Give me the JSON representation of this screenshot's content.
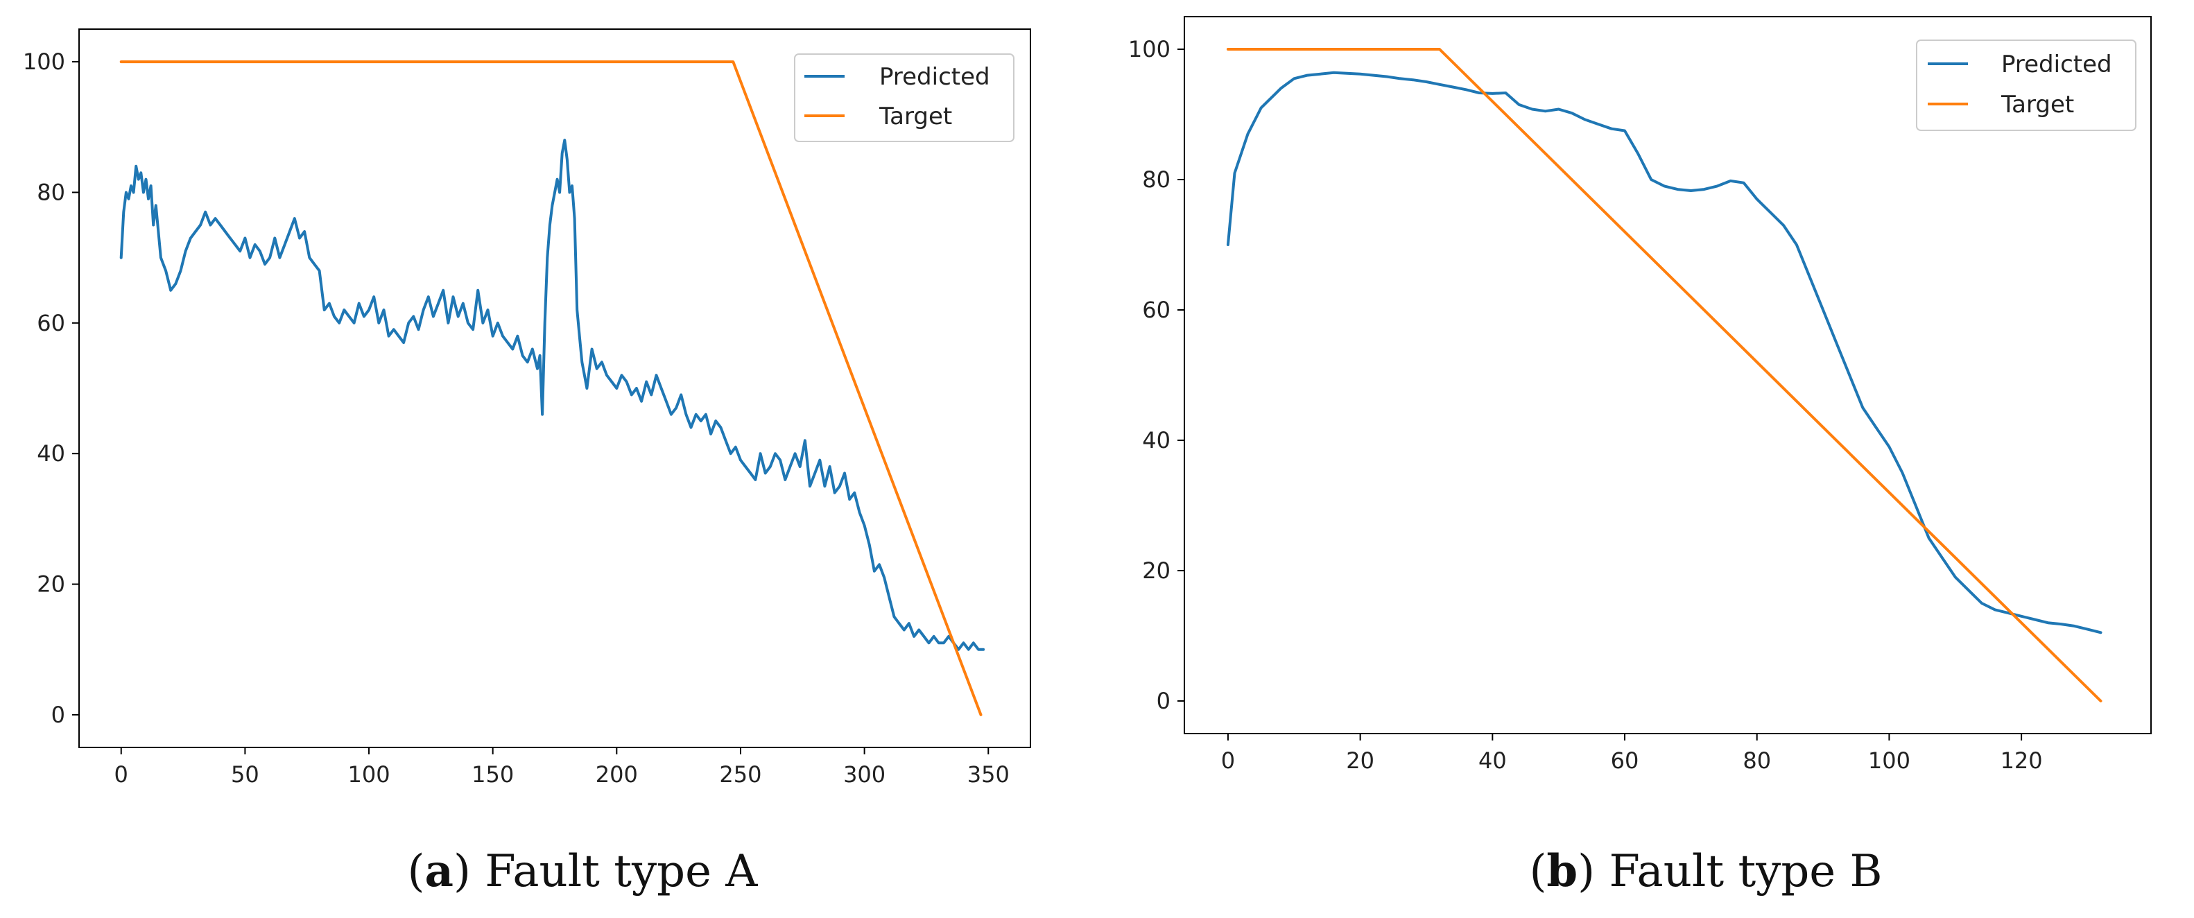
{
  "figure": {
    "panels": [
      {
        "caption_letter": "a",
        "caption_text": "Fault type A"
      },
      {
        "caption_letter": "b",
        "caption_text": "Fault type B"
      }
    ]
  },
  "colors": {
    "predicted": "#1f77b4",
    "target": "#ff7f0e",
    "axes": "#000000"
  },
  "chart_data": [
    {
      "type": "line",
      "title": "",
      "xlabel": "",
      "ylabel": "",
      "xlim": [
        -17,
        367
      ],
      "ylim": [
        -5,
        105
      ],
      "xticks": [
        0,
        50,
        100,
        150,
        200,
        250,
        300,
        350
      ],
      "yticks": [
        0,
        20,
        40,
        60,
        80,
        100
      ],
      "legend": {
        "position": "top-right",
        "entries": [
          "Predicted",
          "Target"
        ]
      },
      "series": [
        {
          "name": "Predicted",
          "x": [
            0,
            1,
            2,
            3,
            4,
            5,
            6,
            7,
            8,
            9,
            10,
            11,
            12,
            13,
            14,
            16,
            18,
            20,
            22,
            24,
            26,
            28,
            30,
            32,
            34,
            36,
            38,
            40,
            42,
            44,
            46,
            48,
            50,
            52,
            54,
            56,
            58,
            60,
            62,
            64,
            66,
            68,
            70,
            72,
            74,
            76,
            78,
            80,
            82,
            84,
            86,
            88,
            90,
            92,
            94,
            96,
            98,
            100,
            102,
            104,
            106,
            108,
            110,
            112,
            114,
            116,
            118,
            120,
            122,
            124,
            126,
            128,
            130,
            132,
            134,
            136,
            138,
            140,
            142,
            144,
            146,
            148,
            150,
            152,
            154,
            156,
            158,
            160,
            162,
            164,
            166,
            168,
            169,
            170,
            171,
            172,
            173,
            174,
            175,
            176,
            177,
            178,
            179,
            180,
            181,
            182,
            183,
            184,
            185,
            186,
            187,
            188,
            190,
            192,
            194,
            196,
            198,
            200,
            202,
            204,
            206,
            208,
            210,
            212,
            214,
            216,
            218,
            220,
            222,
            224,
            226,
            228,
            230,
            232,
            234,
            236,
            238,
            240,
            242,
            244,
            246,
            248,
            250,
            252,
            254,
            256,
            258,
            260,
            262,
            264,
            266,
            268,
            270,
            272,
            274,
            276,
            278,
            280,
            282,
            284,
            286,
            288,
            290,
            292,
            294,
            296,
            298,
            300,
            302,
            304,
            306,
            308,
            310,
            312,
            314,
            316,
            318,
            320,
            322,
            324,
            326,
            328,
            330,
            332,
            334,
            336,
            338,
            340,
            342,
            344,
            346,
            348
          ],
          "values": [
            70,
            77,
            80,
            79,
            81,
            80,
            84,
            82,
            83,
            80,
            82,
            79,
            81,
            75,
            78,
            70,
            68,
            65,
            66,
            68,
            71,
            73,
            74,
            75,
            77,
            75,
            76,
            75,
            74,
            73,
            72,
            71,
            73,
            70,
            72,
            71,
            69,
            70,
            73,
            70,
            72,
            74,
            76,
            73,
            74,
            70,
            69,
            68,
            62,
            63,
            61,
            60,
            62,
            61,
            60,
            63,
            61,
            62,
            64,
            60,
            62,
            58,
            59,
            58,
            57,
            60,
            61,
            59,
            62,
            64,
            61,
            63,
            65,
            60,
            64,
            61,
            63,
            60,
            59,
            65,
            60,
            62,
            58,
            60,
            58,
            57,
            56,
            58,
            55,
            54,
            56,
            53,
            55,
            46,
            60,
            70,
            75,
            78,
            80,
            82,
            80,
            86,
            88,
            85,
            80,
            81,
            76,
            62,
            58,
            54,
            52,
            50,
            56,
            53,
            54,
            52,
            51,
            50,
            52,
            51,
            49,
            50,
            48,
            51,
            49,
            52,
            50,
            48,
            46,
            47,
            49,
            46,
            44,
            46,
            45,
            46,
            43,
            45,
            44,
            42,
            40,
            41,
            39,
            38,
            37,
            36,
            40,
            37,
            38,
            40,
            39,
            36,
            38,
            40,
            38,
            42,
            35,
            37,
            39,
            35,
            38,
            34,
            35,
            37,
            33,
            34,
            31,
            29,
            26,
            22,
            23,
            21,
            18,
            15,
            14,
            13,
            14,
            12,
            13,
            12,
            11,
            12,
            11,
            11,
            12,
            11,
            10,
            11,
            10,
            11,
            10,
            10
          ]
        },
        {
          "name": "Target",
          "x": [
            0,
            247,
            347
          ],
          "values": [
            100,
            100,
            0
          ]
        }
      ]
    },
    {
      "type": "line",
      "title": "",
      "xlabel": "",
      "ylabel": "",
      "xlim": [
        -6.6,
        139.6
      ],
      "ylim": [
        -5,
        105
      ],
      "xticks": [
        0,
        20,
        40,
        60,
        80,
        100,
        120
      ],
      "yticks": [
        0,
        20,
        40,
        60,
        80,
        100
      ],
      "legend": {
        "position": "top-right",
        "entries": [
          "Predicted",
          "Target"
        ]
      },
      "series": [
        {
          "name": "Predicted",
          "x": [
            0,
            1,
            2,
            3,
            4,
            5,
            6,
            7,
            8,
            10,
            12,
            14,
            16,
            18,
            20,
            22,
            24,
            26,
            28,
            30,
            32,
            34,
            36,
            38,
            40,
            42,
            44,
            46,
            48,
            50,
            52,
            54,
            56,
            58,
            60,
            62,
            64,
            66,
            68,
            70,
            72,
            74,
            76,
            78,
            80,
            82,
            84,
            86,
            88,
            90,
            92,
            94,
            96,
            98,
            100,
            102,
            104,
            106,
            108,
            110,
            112,
            114,
            116,
            118,
            120,
            122,
            124,
            126,
            128,
            130,
            132
          ],
          "values": [
            70,
            81,
            84,
            87,
            89,
            91,
            92,
            93,
            94,
            95.5,
            96,
            96.2,
            96.4,
            96.3,
            96.2,
            96,
            95.8,
            95.5,
            95.3,
            95,
            94.6,
            94.2,
            93.8,
            93.3,
            93.2,
            93.3,
            91.5,
            90.8,
            90.5,
            90.8,
            90.2,
            89.2,
            88.5,
            87.8,
            87.5,
            84,
            80,
            79,
            78.5,
            78.3,
            78.5,
            79,
            79.8,
            79.5,
            77,
            75,
            73,
            70,
            65,
            60,
            55,
            50,
            45,
            42,
            39,
            35,
            30,
            25,
            22,
            19,
            17,
            15,
            14,
            13.5,
            13,
            12.5,
            12,
            11.8,
            11.5,
            11,
            10.5
          ]
        },
        {
          "name": "Target",
          "x": [
            0,
            32,
            132
          ],
          "values": [
            100,
            100,
            0
          ]
        }
      ]
    }
  ]
}
